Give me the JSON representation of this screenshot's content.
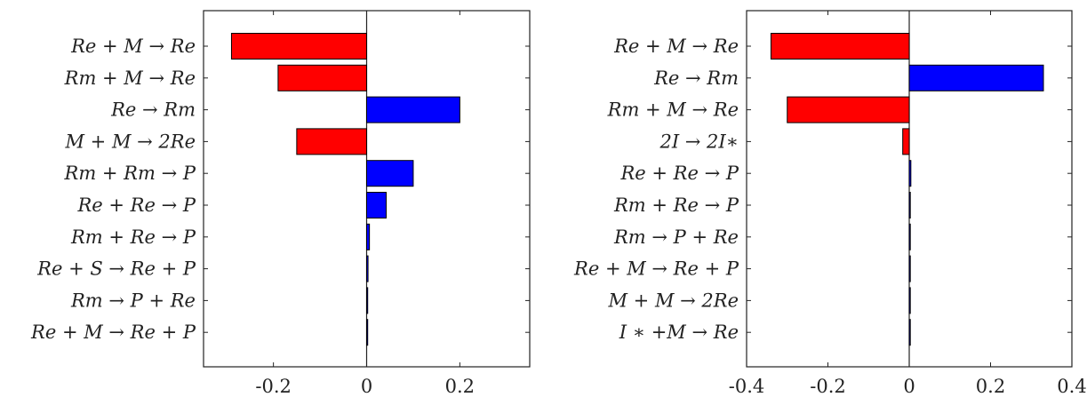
{
  "chart_data": [
    {
      "type": "bar",
      "orientation": "horizontal",
      "categories": [
        "Re + M → Re",
        "Rm + M → Re",
        "Re → Rm",
        "M + M → 2Re",
        "Rm + Rm → P",
        "Re + Re → P",
        "Rm + Re → P",
        "Re + S → Re + P",
        "Rm → P + Re",
        "Re + M → Re + P"
      ],
      "values": [
        -0.29,
        -0.19,
        0.2,
        -0.15,
        0.1,
        0.042,
        0.006,
        0.003,
        0.0008,
        0.0004
      ],
      "xlim": [
        -0.35,
        0.35
      ],
      "ticks": [
        "-0.2",
        "0",
        "0.2"
      ],
      "tick_values": [
        -0.2,
        0,
        0.2
      ],
      "grid": false,
      "colors": {
        "negative": "#ff0000",
        "positive": "#0000ff"
      }
    },
    {
      "type": "bar",
      "orientation": "horizontal",
      "categories": [
        "Re + M → Re",
        "Re → Rm",
        "Rm + M → Re",
        "2I → 2I∗",
        "Re + Re → P",
        "Rm + Re → P",
        "Rm → P + Re",
        "Re + M → Re + P",
        "M + M → 2Re",
        "I ∗ +M → Re"
      ],
      "values": [
        -0.34,
        0.33,
        -0.3,
        -0.016,
        0.004,
        0.002,
        0.0015,
        0.001,
        0.0008,
        0.0005
      ],
      "xlim": [
        -0.4,
        0.4
      ],
      "ticks": [
        "-0.4",
        "-0.2",
        "0",
        "0.2",
        "0.4"
      ],
      "tick_values": [
        -0.4,
        -0.2,
        0,
        0.2,
        0.4
      ],
      "grid": false,
      "colors": {
        "negative": "#ff0000",
        "positive": "#0000ff"
      }
    }
  ]
}
